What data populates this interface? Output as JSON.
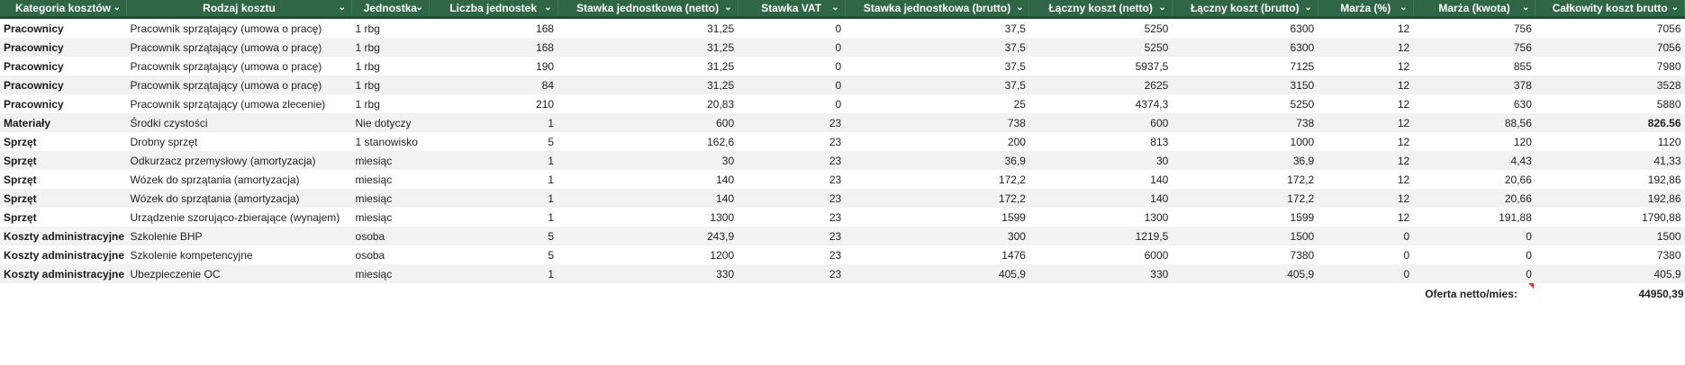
{
  "headers": [
    "Kategoria kosztów",
    "Rodzaj kosztu",
    "Jednostka",
    "Liczba jednostek",
    "Stawka jednostkowa (netto)",
    "Stawka VAT",
    "Stawka jednostkowa (brutto)",
    "Łączny koszt (netto)",
    "Łączny koszt (brutto)",
    "Marża (%)",
    "Marża (kwota)",
    "Całkowity koszt brutto"
  ],
  "rows": [
    [
      "Pracownicy",
      "Pracownik sprzątający (umowa o pracę)",
      "1 rbg",
      "168",
      "31,25",
      "0",
      "37,5",
      "5250",
      "6300",
      "12",
      "756",
      "7056"
    ],
    [
      "Pracownicy",
      "Pracownik sprzątający (umowa o pracę)",
      "1 rbg",
      "168",
      "31,25",
      "0",
      "37,5",
      "5250",
      "6300",
      "12",
      "756",
      "7056"
    ],
    [
      "Pracownicy",
      "Pracownik sprzątający (umowa o pracę)",
      "1 rbg",
      "190",
      "31,25",
      "0",
      "37,5",
      "5937,5",
      "7125",
      "12",
      "855",
      "7980"
    ],
    [
      "Pracownicy",
      "Pracownik sprzątający (umowa o pracę)",
      "1 rbg",
      "84",
      "31,25",
      "0",
      "37,5",
      "2625",
      "3150",
      "12",
      "378",
      "3528"
    ],
    [
      "Pracownicy",
      "Pracownik sprzątający (umowa zlecenie)",
      "1 rbg",
      "210",
      "20,83",
      "0",
      "25",
      "4374,3",
      "5250",
      "12",
      "630",
      "5880"
    ],
    [
      "Materiały",
      "Środki czystości",
      "Nie dotyczy",
      "1",
      "600",
      "23",
      "738",
      "600",
      "738",
      "12",
      "88,56",
      "826.56"
    ],
    [
      "Sprzęt",
      "Drobny sprzęt",
      "1 stanowisko",
      "5",
      "162,6",
      "23",
      "200",
      "813",
      "1000",
      "12",
      "120",
      "1120"
    ],
    [
      "Sprzęt",
      "Odkurzacz przemysłowy (amortyzacja)",
      "miesiąc",
      "1",
      "30",
      "23",
      "36,9",
      "30",
      "36,9",
      "12",
      "4,43",
      "41,33"
    ],
    [
      "Sprzęt",
      "Wózek do sprzątania (amortyzacja)",
      "miesiąc",
      "1",
      "140",
      "23",
      "172,2",
      "140",
      "172,2",
      "12",
      "20,66",
      "192,86"
    ],
    [
      "Sprzęt",
      "Wózek do sprzątania (amortyzacja)",
      "miesiąc",
      "1",
      "140",
      "23",
      "172,2",
      "140",
      "172,2",
      "12",
      "20,66",
      "192,86"
    ],
    [
      "Sprzęt",
      "Urządzenie szorująco-zbierające (wynajem)",
      "miesiąc",
      "1",
      "1300",
      "23",
      "1599",
      "1300",
      "1599",
      "12",
      "191,88",
      "1790,88"
    ],
    [
      "Koszty administracyjne",
      "Szkolenie BHP",
      "osoba",
      "5",
      "243,9",
      "23",
      "300",
      "1219,5",
      "1500",
      "0",
      "0",
      "1500"
    ],
    [
      "Koszty administracyjne",
      "Szkolenie kompetencyjne",
      "osoba",
      "5",
      "1200",
      "23",
      "1476",
      "6000",
      "7380",
      "0",
      "0",
      "7380"
    ],
    [
      "Koszty administracyjne",
      "Ubezpieczenie OC",
      "miesiąc",
      "1",
      "330",
      "23",
      "405,9",
      "330",
      "405,9",
      "0",
      "0",
      "405,9"
    ]
  ],
  "bold_cells": [
    [
      5,
      11
    ]
  ],
  "summary": {
    "label": "Oferta netto/mies:",
    "value": "44950,39"
  },
  "icons": {
    "header_dropdown": "chevron-down-icon",
    "comment_marker": "comment-indicator-icon"
  },
  "colors": {
    "header_bg": "#2f6645",
    "header_text": "#ffffff",
    "stripe": "#f2f2f2",
    "comment_marker": "#e03030"
  }
}
